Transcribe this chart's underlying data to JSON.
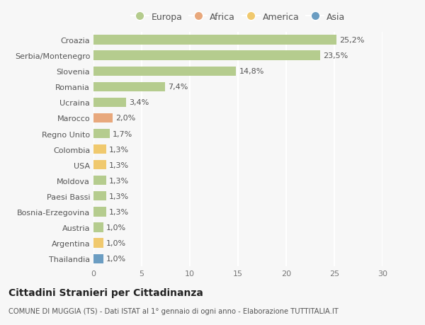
{
  "countries": [
    "Croazia",
    "Serbia/Montenegro",
    "Slovenia",
    "Romania",
    "Ucraina",
    "Marocco",
    "Regno Unito",
    "Colombia",
    "USA",
    "Moldova",
    "Paesi Bassi",
    "Bosnia-Erzegovina",
    "Austria",
    "Argentina",
    "Thailandia"
  ],
  "values": [
    25.2,
    23.5,
    14.8,
    7.4,
    3.4,
    2.0,
    1.7,
    1.3,
    1.3,
    1.3,
    1.3,
    1.3,
    1.0,
    1.0,
    1.0
  ],
  "labels": [
    "25,2%",
    "23,5%",
    "14,8%",
    "7,4%",
    "3,4%",
    "2,0%",
    "1,7%",
    "1,3%",
    "1,3%",
    "1,3%",
    "1,3%",
    "1,3%",
    "1,0%",
    "1,0%",
    "1,0%"
  ],
  "categories": [
    "Europa",
    "Africa",
    "America",
    "Asia"
  ],
  "continent": [
    "Europa",
    "Europa",
    "Europa",
    "Europa",
    "Europa",
    "Africa",
    "Europa",
    "America",
    "America",
    "Europa",
    "Europa",
    "Europa",
    "Europa",
    "America",
    "Asia"
  ],
  "colors": {
    "Europa": "#b5cc8e",
    "Africa": "#e8a87c",
    "America": "#f0c96e",
    "Asia": "#6b9dc2"
  },
  "bg_color": "#f7f7f7",
  "title": "Cittadini Stranieri per Cittadinanza",
  "subtitle": "COMUNE DI MUGGIA (TS) - Dati ISTAT al 1° gennaio di ogni anno - Elaborazione TUTTITALIA.IT",
  "xlim": [
    0,
    30
  ],
  "xticks": [
    0,
    5,
    10,
    15,
    20,
    25,
    30
  ],
  "bar_height": 0.6,
  "grid_color": "#ffffff",
  "label_fontsize": 8,
  "tick_fontsize": 8,
  "legend_fontsize": 9
}
